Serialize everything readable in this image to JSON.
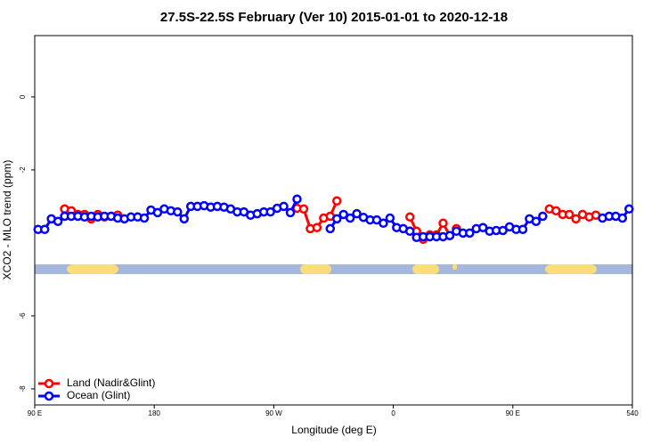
{
  "chart_data": {
    "type": "line",
    "title": "27.5S-22.5S February (Ver 10)   2015-01-01 to 2020-12-18",
    "xlabel": "Longitude (deg E)",
    "ylabel": "XCO2 - MLO trend (ppm)",
    "xlim": [
      90,
      540
    ],
    "ylim": [
      -8.44,
      1.68
    ],
    "xticks": [
      {
        "value": 90,
        "label": "90 E"
      },
      180,
      {
        "value": 270,
        "label": "90 W"
      },
      {
        "value": 360,
        "label": "0"
      },
      {
        "value": 450,
        "label": "90 E"
      },
      540
    ],
    "yticks": [
      -8,
      -6,
      -2,
      0
    ],
    "grid": false,
    "legend": "bottom-left",
    "x": [
      92.5,
      97.5,
      102.5,
      107.5,
      112.5,
      117.5,
      122.5,
      127.5,
      132.5,
      137.5,
      142.5,
      147.5,
      152.5,
      157.5,
      162.5,
      167.5,
      172.5,
      177.5,
      182.5,
      187.5,
      192.5,
      197.5,
      202.5,
      207.5,
      212.5,
      217.5,
      222.5,
      227.5,
      232.5,
      237.5,
      242.5,
      247.5,
      252.5,
      257.5,
      262.5,
      267.5,
      272.5,
      277.5,
      282.5,
      287.5,
      292.5,
      297.5,
      302.5,
      307.5,
      312.5,
      317.5,
      322.5,
      327.5,
      332.5,
      337.5,
      342.5,
      347.5,
      352.5,
      357.5,
      362.5,
      367.5,
      372.5,
      377.5,
      382.5,
      387.5,
      392.5,
      397.5,
      402.5,
      407.5,
      412.5,
      417.5,
      422.5,
      427.5,
      432.5,
      437.5,
      442.5,
      447.5,
      452.5,
      457.5,
      462.5,
      467.5,
      472.5,
      477.5,
      482.5,
      487.5,
      492.5,
      497.5,
      502.5,
      507.5,
      512.5,
      517.5,
      522.5,
      527.5,
      532.5,
      537.5
    ],
    "series": [
      {
        "name": "Land (Nadir&Glint)",
        "color": "#ff0000",
        "values": [
          null,
          null,
          null,
          null,
          -3.07,
          -3.12,
          -3.22,
          -3.22,
          -3.34,
          -3.22,
          -3.29,
          -3.27,
          -3.24,
          null,
          null,
          null,
          null,
          null,
          null,
          null,
          null,
          null,
          null,
          null,
          null,
          null,
          null,
          null,
          null,
          null,
          null,
          null,
          null,
          null,
          null,
          null,
          null,
          null,
          null,
          -3.05,
          -3.07,
          -3.61,
          -3.58,
          -3.32,
          -3.27,
          -2.85,
          null,
          null,
          null,
          null,
          null,
          null,
          null,
          null,
          null,
          null,
          -3.29,
          -3.68,
          -3.9,
          -3.78,
          -3.78,
          -3.46,
          -3.8,
          -3.61,
          null,
          null,
          null,
          null,
          null,
          null,
          null,
          null,
          null,
          null,
          null,
          null,
          null,
          -3.07,
          -3.12,
          -3.22,
          -3.22,
          -3.34,
          -3.22,
          -3.29,
          -3.24,
          null,
          null,
          null,
          null,
          null
        ]
      },
      {
        "name": "Ocean (Glint)",
        "color": "#0000ff",
        "values": [
          -3.63,
          -3.63,
          -3.34,
          -3.41,
          -3.27,
          -3.27,
          -3.27,
          -3.29,
          -3.27,
          -3.29,
          -3.27,
          -3.27,
          -3.32,
          -3.34,
          -3.29,
          -3.29,
          -3.32,
          -3.1,
          -3.17,
          -3.07,
          -3.12,
          -3.15,
          -3.34,
          -3.0,
          -3.0,
          -2.98,
          -3.02,
          -3.0,
          -3.02,
          -3.07,
          -3.15,
          -3.15,
          -3.24,
          -3.2,
          -3.15,
          -3.15,
          -3.05,
          -3.0,
          -3.17,
          -2.8,
          null,
          null,
          null,
          null,
          -3.61,
          -3.34,
          -3.22,
          -3.32,
          -3.2,
          -3.3,
          -3.37,
          -3.37,
          -3.46,
          -3.32,
          -3.58,
          -3.61,
          -3.68,
          -3.85,
          -3.83,
          -3.83,
          -3.83,
          -3.83,
          -3.8,
          -3.68,
          -3.73,
          -3.73,
          -3.61,
          -3.58,
          -3.68,
          -3.66,
          -3.66,
          -3.56,
          -3.63,
          -3.63,
          -3.34,
          -3.41,
          -3.27,
          null,
          null,
          null,
          null,
          null,
          null,
          null,
          null,
          -3.32,
          -3.27,
          -3.27,
          -3.32,
          -3.07
        ]
      }
    ]
  }
}
